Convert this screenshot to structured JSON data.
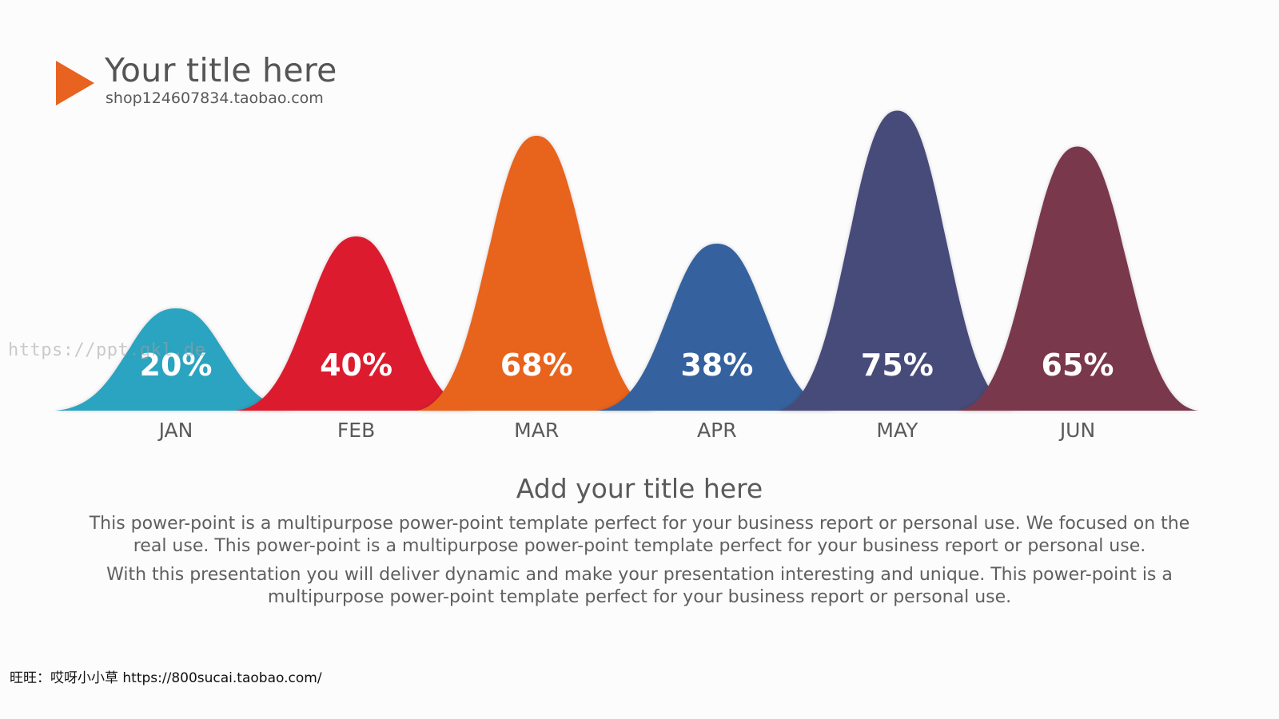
{
  "header": {
    "title": "Your title here",
    "subtitle": "shop124607834.taobao.com"
  },
  "chart_data": {
    "type": "area",
    "categories": [
      "JAN",
      "FEB",
      "MAR",
      "APR",
      "MAY",
      "JUN"
    ],
    "values": [
      20,
      40,
      68,
      38,
      75,
      65
    ],
    "labels": [
      "20%",
      "40%",
      "68%",
      "38%",
      "75%",
      "65%"
    ],
    "colors": [
      "#2ba4c0",
      "#dc1f2e",
      "#e8631f",
      "#35629e",
      "#474c7a",
      "#7a394e"
    ],
    "ylim": [
      0,
      100
    ],
    "grid": false,
    "legend": "none"
  },
  "body": {
    "section_title": "Add your title here",
    "paragraph_1": "This power-point is a multipurpose power-point template perfect for your business report or personal use. We focused on the real use. This power-point is a multipurpose power-point template perfect for your business report or personal use.",
    "paragraph_2": "With this presentation you will deliver dynamic and make your presentation interesting and unique. This power-point is a multipurpose power-point template perfect for your business report or personal use."
  },
  "footer": {
    "text": "旺旺：哎呀小小草 https://800sucai.taobao.com/"
  },
  "watermark": {
    "text": "https://ppt.gkl.de"
  }
}
